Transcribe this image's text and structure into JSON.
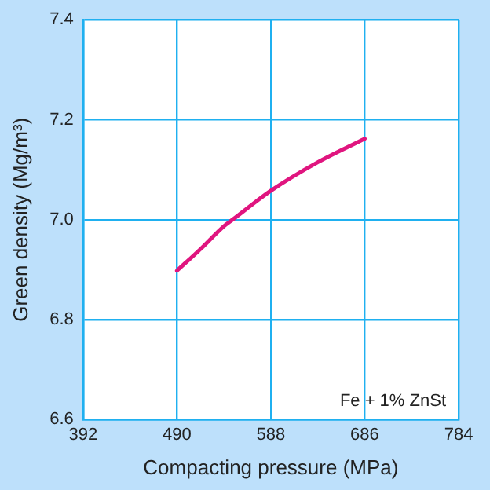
{
  "chart_data": {
    "type": "line",
    "xlabel": "Compacting pressure (MPa)",
    "ylabel": "Green density (Mg/m³)",
    "x": [
      490,
      515,
      539,
      548,
      588,
      637,
      686
    ],
    "series": [
      {
        "color": "#e0157f",
        "values": [
          6.898,
          6.942,
          6.987,
          7.0,
          7.058,
          7.115,
          7.162
        ]
      }
    ],
    "xlim": [
      392,
      784
    ],
    "xticks": [
      392,
      490,
      588,
      686,
      784
    ],
    "ylim": [
      6.6,
      7.4
    ],
    "yticks": [
      {
        "value": 6.6,
        "label": "6.6"
      },
      {
        "value": 6.8,
        "label": "6.8"
      },
      {
        "value": 7.0,
        "label": "7.0"
      },
      {
        "value": 7.2,
        "label": "7.2"
      },
      {
        "value": 7.4,
        "label": "7.4"
      }
    ],
    "grid": true,
    "legend": false,
    "marker": "none",
    "line_style": "solid",
    "annotations": [
      "Fe + 1% ZnSt"
    ]
  }
}
